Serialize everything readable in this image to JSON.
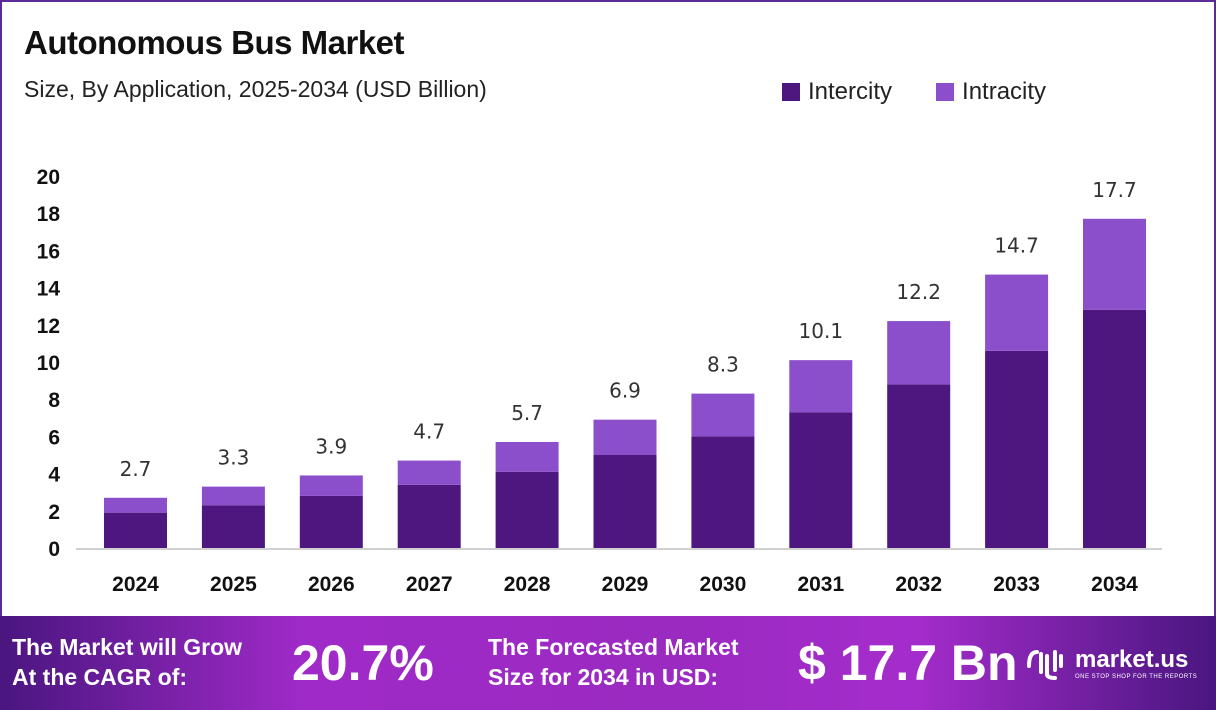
{
  "chart_data": {
    "type": "bar",
    "stacked": true,
    "title": "Autonomous Bus Market",
    "subtitle": "Size, By Application, 2025-2034 (USD Billion)",
    "categories": [
      "2024",
      "2025",
      "2026",
      "2027",
      "2028",
      "2029",
      "2030",
      "2031",
      "2032",
      "2033",
      "2034"
    ],
    "series": [
      {
        "name": "Intercity",
        "color": "#4e1780",
        "values": [
          1.9,
          2.3,
          2.8,
          3.4,
          4.1,
          5.0,
          6.0,
          7.3,
          8.8,
          10.6,
          12.8
        ]
      },
      {
        "name": "Intracity",
        "color": "#8c4fcc",
        "values": [
          0.8,
          1.0,
          1.1,
          1.3,
          1.6,
          1.9,
          2.3,
          2.8,
          3.4,
          4.1,
          4.9
        ]
      }
    ],
    "totals": [
      "2.7",
      "3.3",
      "3.9",
      "4.7",
      "5.7",
      "6.9",
      "8.3",
      "10.1",
      "12.2",
      "14.7",
      "17.7"
    ],
    "yticks": [
      "0",
      "2",
      "4",
      "6",
      "8",
      "10",
      "12",
      "14",
      "16",
      "18",
      "20"
    ],
    "ylim": [
      0,
      20
    ],
    "grid": false,
    "legend": "top-right"
  },
  "footer": {
    "cagr_label_1": "The Market will Grow",
    "cagr_label_2": "At the CAGR of:",
    "cagr_value": "20.7%",
    "forecast_label_1": "The Forecasted Market",
    "forecast_label_2": "Size for 2034 in USD:",
    "forecast_value": "$ 17.7 Bn",
    "logo_name": "market.us",
    "logo_tagline": "ONE STOP SHOP FOR THE REPORTS"
  }
}
